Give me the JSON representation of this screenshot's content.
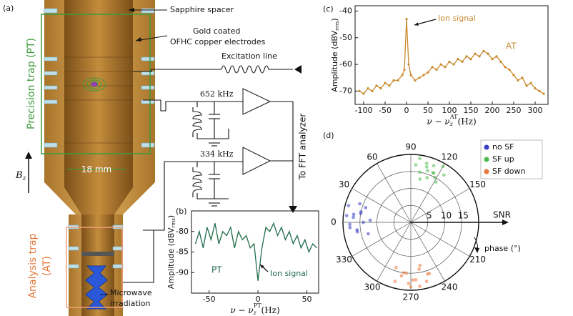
{
  "figure": {
    "panel_a": {
      "label": "(a)",
      "sapphire": "Sapphire spacer",
      "gold_1": "Gold coated",
      "gold_2": "OFHC copper electrodes",
      "precision": "Precision trap (PT)",
      "excitation": "Excitation line",
      "freq_1": "652 kHz",
      "freq_2": "334 kHz",
      "fft": "To FFT analyzer",
      "size": "18 mm",
      "field": "B",
      "field_sub": "z",
      "analysis_1": "Analysis trap",
      "analysis_2": "(AT)",
      "microwave_1": "Microwave",
      "microwave_2": "irradiation"
    }
  },
  "chart_data": [
    {
      "type": "line",
      "label": "(b)",
      "annotations": {
        "trap": "PT",
        "ion": "Ion signal"
      },
      "xlabel": {
        "main": "ν − ν",
        "sub": "z",
        "sup": "PT",
        "unit": "(Hz)"
      },
      "ylabel": {
        "main": "Amplitude (dBV",
        "sub": "rms",
        "end": ")"
      },
      "x": [
        -64,
        -60,
        -56,
        -52,
        -48,
        -44,
        -40,
        -36,
        -32,
        -28,
        -24,
        -20,
        -16,
        -12,
        -8,
        -4,
        0,
        4,
        8,
        12,
        16,
        20,
        24,
        28,
        32,
        36,
        40,
        44,
        48,
        52,
        56,
        60
      ],
      "values": [
        -83,
        -80,
        -84,
        -79,
        -82,
        -78,
        -83,
        -80,
        -81,
        -79,
        -84,
        -80,
        -82,
        -81,
        -84,
        -83,
        -92,
        -84,
        -79,
        -80,
        -78,
        -81,
        -79,
        -82,
        -80,
        -83,
        -81,
        -84,
        -82,
        -85,
        -83,
        -84
      ],
      "color": "#1f6b4a",
      "markers": false,
      "xlim": [
        -68,
        62
      ],
      "xticks": [
        -50,
        0,
        50
      ],
      "ylim": [
        -95,
        -75
      ],
      "yticks": [
        -90,
        -85,
        -80
      ]
    },
    {
      "type": "line",
      "label": "(c)",
      "annotations": {
        "trap": "AT",
        "ion": "Ion signal"
      },
      "xlabel": {
        "main": "ν − ν",
        "sub": "z",
        "sup": "AT",
        "unit": "(Hz)"
      },
      "ylabel": {
        "main": "Amplitude (dBV",
        "sub": "rms",
        "end": ")"
      },
      "x": [
        -110,
        -100,
        -90,
        -80,
        -70,
        -60,
        -50,
        -40,
        -30,
        -20,
        -10,
        -5,
        0,
        5,
        10,
        20,
        30,
        40,
        50,
        60,
        70,
        80,
        90,
        100,
        110,
        120,
        130,
        140,
        150,
        160,
        170,
        180,
        190,
        200,
        210,
        220,
        230,
        240,
        250,
        260,
        270,
        280,
        290,
        300,
        310,
        320
      ],
      "values": [
        -70,
        -71,
        -69,
        -70,
        -68,
        -69,
        -67,
        -68,
        -66,
        -66,
        -64,
        -62,
        -43,
        -60,
        -64,
        -66,
        -65,
        -64,
        -63,
        -61,
        -62,
        -60,
        -61,
        -59,
        -60,
        -58,
        -59,
        -57,
        -58,
        -56,
        -57,
        -55,
        -56,
        -58,
        -57,
        -59,
        -61,
        -62,
        -64,
        -66,
        -65,
        -68,
        -67,
        -69,
        -70,
        -71
      ],
      "color": "#c98a2e",
      "markers": true,
      "xlim": [
        -120,
        330
      ],
      "xticks": [
        -100,
        -50,
        0,
        50,
        100,
        150,
        200,
        250,
        300
      ],
      "ylim": [
        -75,
        -38
      ],
      "yticks": [
        -70,
        -60,
        -50,
        -40
      ]
    },
    {
      "type": "polar_scatter",
      "label": "(d)",
      "radial_label": "SNR",
      "angle_label": "phase (°)",
      "rlim": [
        0,
        20
      ],
      "rticks": [
        5,
        10,
        15
      ],
      "theta_ticks": [
        0,
        30,
        60,
        90,
        120,
        150,
        210,
        240,
        270,
        300,
        330
      ],
      "series": [
        {
          "name": "no SF",
          "color": "#3a3fc4",
          "theta": [
            350,
            355,
            0,
            5,
            10,
            15,
            20,
            345,
            358,
            3,
            8,
            12,
            18,
            352,
            6
          ],
          "r": [
            16,
            18,
            14,
            17,
            15,
            19,
            16,
            13,
            18,
            12,
            17,
            15,
            14,
            16,
            19
          ]
        },
        {
          "name": "SF up",
          "color": "#4cbb4c",
          "theta": [
            95,
            100,
            105,
            110,
            115,
            120,
            125,
            102,
            108,
            112,
            118,
            98,
            122,
            106,
            114
          ],
          "r": [
            17,
            15,
            18,
            14,
            16,
            19,
            17,
            13,
            16,
            18,
            15,
            19,
            14,
            17,
            16
          ]
        },
        {
          "name": "SF down",
          "color": "#e8773a",
          "theta": [
            250,
            255,
            260,
            265,
            270,
            275,
            280,
            285,
            258,
            268,
            278,
            262,
            272,
            252,
            288
          ],
          "r": [
            16,
            18,
            14,
            17,
            19,
            15,
            16,
            18,
            13,
            17,
            15,
            19,
            18,
            16,
            14
          ]
        }
      ]
    }
  ]
}
